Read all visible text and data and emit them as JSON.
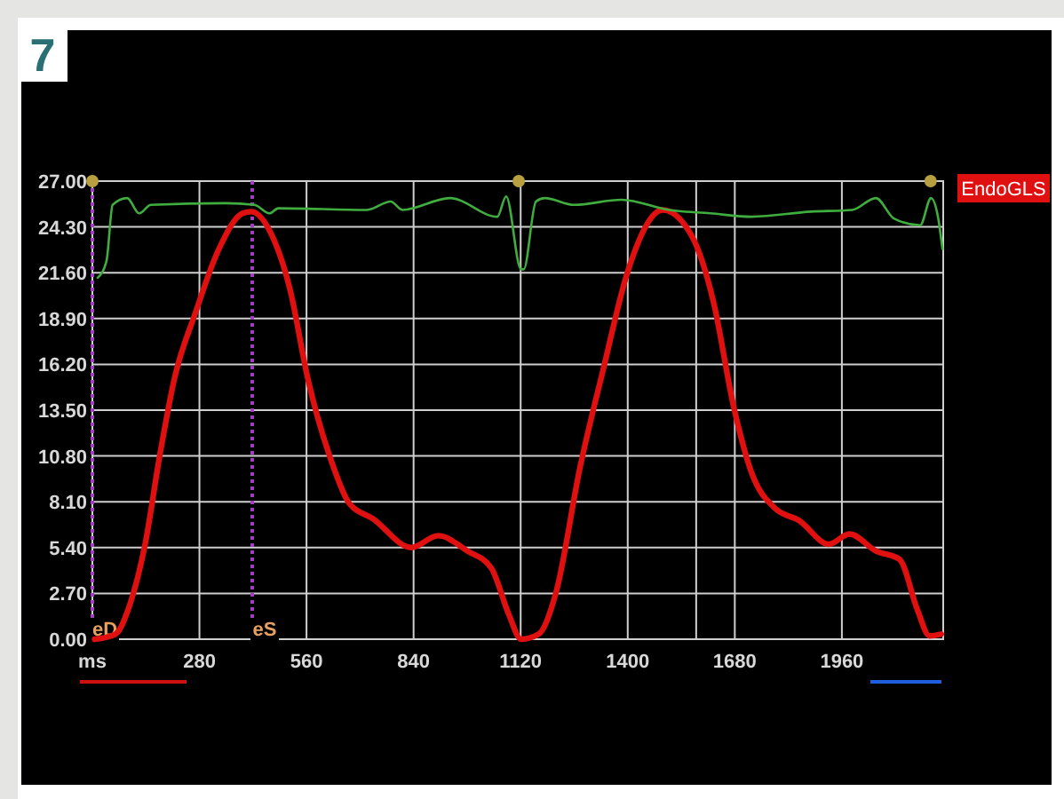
{
  "chart_data": {
    "type": "line",
    "annotations": [
      "7"
    ],
    "xlim": [
      0,
      2225
    ],
    "xticks": [
      {
        "value": 0,
        "label": "ms"
      },
      280,
      560,
      840,
      1120,
      1400,
      1680,
      1960
    ],
    "ylim": [
      0,
      27
    ],
    "yticks": [
      {
        "value": 0,
        "label": "0.00"
      },
      {
        "value": 2.7,
        "label": "2.70"
      },
      {
        "value": 5.4,
        "label": "5.40"
      },
      {
        "value": 8.1,
        "label": "8.10"
      },
      {
        "value": 10.8,
        "label": "10.80"
      },
      {
        "value": 13.5,
        "label": "13.50"
      },
      {
        "value": 16.2,
        "label": "16.20"
      },
      {
        "value": 18.9,
        "label": "18.90"
      },
      {
        "value": 21.6,
        "label": "21.60"
      },
      {
        "value": 24.3,
        "label": "24.30"
      },
      {
        "value": 27,
        "label": "27.00"
      }
    ],
    "grid": true,
    "legend": "top right",
    "series": [
      {
        "name": "EndoGLS",
        "color": "#e01010",
        "x": [
          6,
          60,
          99,
          138,
          176,
          215,
          269,
          331,
          393,
          416,
          463,
          517,
          563,
          625,
          672,
          734,
          834,
          904,
          981,
          1043,
          1090,
          1121,
          1167,
          1213,
          1275,
          1337,
          1399,
          1492,
          1569,
          1624,
          1678,
          1724,
          1786,
          1848,
          1926,
          1980,
          2049,
          2111,
          2158,
          2189,
          2220
        ],
        "values": [
          0,
          0.3,
          2.1,
          5.6,
          10.8,
          15.4,
          19.2,
          23.0,
          25.1,
          25.2,
          24.1,
          20.6,
          15.4,
          10.5,
          8.0,
          7.1,
          5.4,
          6.1,
          5.2,
          4.2,
          1.4,
          0,
          0.3,
          2.8,
          10.1,
          16.0,
          21.6,
          25.3,
          23.7,
          19.9,
          13.6,
          9.8,
          7.7,
          7.0,
          5.6,
          6.2,
          5.2,
          4.7,
          1.7,
          0.2,
          0.3
        ]
      },
      {
        "color": "#3fae3f",
        "x": [
          14,
          37,
          53,
          91,
          122,
          153,
          347,
          424,
          463,
          486,
          718,
          780,
          811,
          935,
          1059,
          1082,
          1121,
          1128,
          1160,
          1183,
          1260,
          1384,
          1508,
          1616,
          1724,
          1879,
          1987,
          2049,
          2096,
          2165,
          2193,
          2212,
          2223
        ],
        "values": [
          21.3,
          22.3,
          25.6,
          26.0,
          25.1,
          25.6,
          25.7,
          25.6,
          25.1,
          25.4,
          25.3,
          25.8,
          25.3,
          26.0,
          24.9,
          26.1,
          21.8,
          21.8,
          25.8,
          26.0,
          25.6,
          25.9,
          25.3,
          25.1,
          24.9,
          25.2,
          25.3,
          26.0,
          24.8,
          24.4,
          26.0,
          24.8,
          23.0
        ]
      },
      {
        "type": "scatter",
        "color": "#b8a040",
        "marker": "circle",
        "x": [
          0,
          1115,
          2192
        ],
        "values": [
          27,
          27,
          27
        ]
      }
    ],
    "ref_lines": [
      {
        "axis": "x",
        "value": 0,
        "label": "eD",
        "color": "#a040c0",
        "line_style": "dotted"
      },
      {
        "axis": "x",
        "value": 418,
        "label": "eS",
        "color": "#a040c0",
        "line_style": "dotted"
      },
      {
        "axis": "x",
        "value": 1579,
        "color": "#d0d0d0",
        "line_style": "solid"
      }
    ]
  }
}
